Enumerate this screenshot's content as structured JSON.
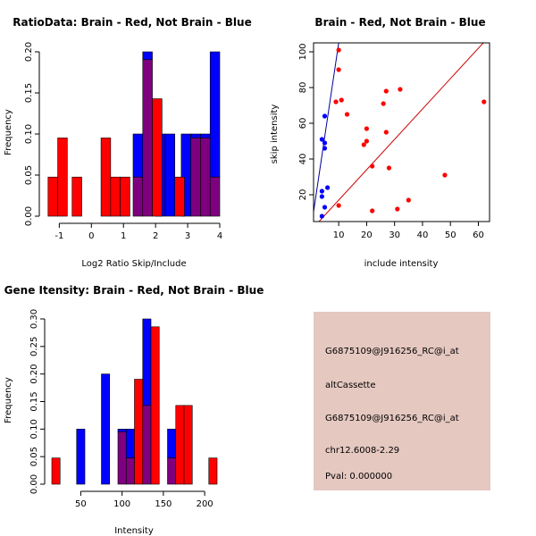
{
  "colors": {
    "brain": "#ff0000",
    "not_brain": "#0000ff",
    "overlap": "#7f007f",
    "bar_edge": "#000000",
    "brain_line": "#cc0000",
    "not_brain_line": "#000099",
    "info_bg": "#e5c8c0",
    "pval_text": "#cc0000"
  },
  "chart_data": [
    {
      "id": "ratio",
      "type": "bar",
      "title": "RatioData: Brain - Red, Not Brain - Blue",
      "xlabel": "Log2 Ratio Skip/Include",
      "ylabel": "Frequency",
      "xlim": [
        -1.4,
        4.0
      ],
      "ylim": [
        0,
        0.2
      ],
      "xticks": [
        -1,
        0,
        1,
        2,
        3,
        4
      ],
      "yticks": [
        0,
        0.05,
        0.1,
        0.15,
        0.2
      ],
      "ytick_labels": [
        "0.00",
        "0.05",
        "0.10",
        "0.15",
        "0.20"
      ],
      "series": [
        {
          "name": "Not Brain",
          "color_key": "not_brain",
          "bars": [
            {
              "x0": 1.3,
              "x1": 1.6,
              "y": 0.1
            },
            {
              "x0": 1.6,
              "x1": 1.9,
              "y": 0.2
            },
            {
              "x0": 2.0,
              "x1": 2.3,
              "y": 0.1
            },
            {
              "x0": 2.3,
              "x1": 2.6,
              "y": 0.1
            },
            {
              "x0": 2.8,
              "x1": 3.1,
              "y": 0.1
            },
            {
              "x0": 3.1,
              "x1": 3.4,
              "y": 0.1
            },
            {
              "x0": 3.4,
              "x1": 3.7,
              "y": 0.1
            },
            {
              "x0": 3.7,
              "x1": 4.0,
              "y": 0.2
            }
          ]
        },
        {
          "name": "Brain",
          "color_key": "brain",
          "bars": [
            {
              "x0": -1.35,
              "x1": -1.05,
              "y": 0.0476
            },
            {
              "x0": -1.05,
              "x1": -0.75,
              "y": 0.0952
            },
            {
              "x0": -0.6,
              "x1": -0.3,
              "y": 0.0476
            },
            {
              "x0": 0.3,
              "x1": 0.6,
              "y": 0.0952
            },
            {
              "x0": 0.6,
              "x1": 0.9,
              "y": 0.0476
            },
            {
              "x0": 0.9,
              "x1": 1.2,
              "y": 0.0476
            },
            {
              "x0": 1.3,
              "x1": 1.6,
              "y": 0.0476
            },
            {
              "x0": 1.6,
              "x1": 1.9,
              "y": 0.1905
            },
            {
              "x0": 1.9,
              "x1": 2.2,
              "y": 0.1429
            },
            {
              "x0": 2.6,
              "x1": 2.9,
              "y": 0.0476
            },
            {
              "x0": 3.1,
              "x1": 3.4,
              "y": 0.0952
            },
            {
              "x0": 3.4,
              "x1": 3.7,
              "y": 0.0952
            },
            {
              "x0": 3.7,
              "x1": 4.0,
              "y": 0.0476
            }
          ]
        }
      ]
    },
    {
      "id": "scatter",
      "type": "scatter",
      "title": "Brain - Red, Not Brain - Blue",
      "xlabel": "include intensity",
      "ylabel": "skip intensity",
      "xlim": [
        1,
        64
      ],
      "ylim": [
        5,
        105
      ],
      "xticks": [
        10,
        20,
        30,
        40,
        50,
        60
      ],
      "yticks": [
        20,
        40,
        60,
        80,
        100
      ],
      "series": [
        {
          "name": "Brain",
          "color_key": "brain",
          "points": [
            [
              10,
              101
            ],
            [
              10,
              90
            ],
            [
              9,
              72
            ],
            [
              11,
              73
            ],
            [
              13,
              65
            ],
            [
              19,
              48
            ],
            [
              20,
              50
            ],
            [
              20,
              57
            ],
            [
              26,
              71
            ],
            [
              27,
              78
            ],
            [
              32,
              79
            ],
            [
              27,
              55
            ],
            [
              28,
              35
            ],
            [
              22,
              36
            ],
            [
              22,
              11
            ],
            [
              31,
              12
            ],
            [
              35,
              17
            ],
            [
              48,
              31
            ],
            [
              62,
              72
            ],
            [
              10,
              14
            ]
          ]
        },
        {
          "name": "Not Brain",
          "color_key": "not_brain",
          "points": [
            [
              4,
              51
            ],
            [
              5,
              49
            ],
            [
              5,
              46
            ],
            [
              5,
              64
            ],
            [
              6,
              24
            ],
            [
              4,
              22
            ],
            [
              4,
              19
            ],
            [
              5,
              13
            ],
            [
              4,
              8
            ]
          ]
        }
      ],
      "lines": [
        {
          "name": "Brain fit",
          "color_key": "brain_line",
          "slope": 1.7,
          "intercept": 0
        },
        {
          "name": "Not Brain fit",
          "color_key": "not_brain_line",
          "slope": 10.5,
          "intercept": 0
        }
      ]
    },
    {
      "id": "intensity",
      "type": "bar",
      "title": "Gene Itensity: Brain - Red, Not Brain - Blue",
      "xlabel": "Intensity",
      "ylabel": "Frequency",
      "xlim": [
        15,
        215
      ],
      "ylim": [
        0,
        0.3
      ],
      "xticks": [
        50,
        100,
        150,
        200
      ],
      "yticks": [
        0,
        0.05,
        0.1,
        0.15,
        0.2,
        0.25,
        0.3
      ],
      "ytick_labels": [
        "0.00",
        "0.05",
        "0.10",
        "0.15",
        "0.20",
        "0.25",
        "0.30"
      ],
      "series": [
        {
          "name": "Not Brain",
          "color_key": "not_brain",
          "bars": [
            {
              "x0": 45,
              "x1": 55,
              "y": 0.1
            },
            {
              "x0": 75,
              "x1": 85,
              "y": 0.2
            },
            {
              "x0": 95,
              "x1": 105,
              "y": 0.1
            },
            {
              "x0": 105,
              "x1": 115,
              "y": 0.1
            },
            {
              "x0": 125,
              "x1": 135,
              "y": 0.3
            },
            {
              "x0": 155,
              "x1": 165,
              "y": 0.1
            }
          ]
        },
        {
          "name": "Brain",
          "color_key": "brain",
          "bars": [
            {
              "x0": 15,
              "x1": 25,
              "y": 0.0476
            },
            {
              "x0": 95,
              "x1": 105,
              "y": 0.0952
            },
            {
              "x0": 105,
              "x1": 115,
              "y": 0.0476
            },
            {
              "x0": 115,
              "x1": 125,
              "y": 0.1905
            },
            {
              "x0": 125,
              "x1": 135,
              "y": 0.1429
            },
            {
              "x0": 135,
              "x1": 145,
              "y": 0.2857
            },
            {
              "x0": 155,
              "x1": 165,
              "y": 0.0476
            },
            {
              "x0": 165,
              "x1": 175,
              "y": 0.1429
            },
            {
              "x0": 175,
              "x1": 185,
              "y": 0.1429
            },
            {
              "x0": 205,
              "x1": 215,
              "y": 0.0476
            }
          ]
        }
      ]
    }
  ],
  "info": {
    "probe_id": "G6875109@J916256_RC@i_at",
    "event_type": "altCassette",
    "probe_id_2": "G6875109@J916256_RC@i_at",
    "location": "chr12.6008-2.29",
    "pval": "Pval: 0.000000"
  }
}
